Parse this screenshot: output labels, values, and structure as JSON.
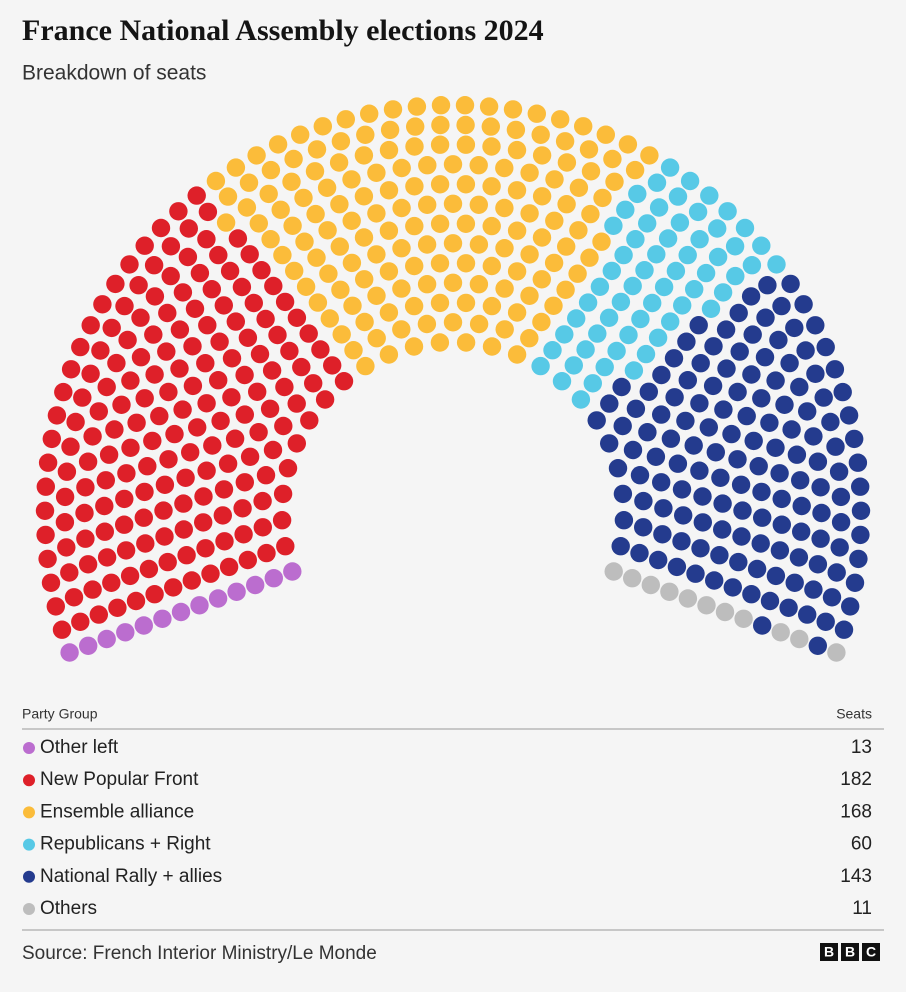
{
  "chart_data": {
    "type": "parliament",
    "title": "France National Assembly elections 2024",
    "subtitle": "Breakdown of seats",
    "categories": [
      "Other left",
      "New Popular Front",
      "Ensemble alliance",
      "Republicans + Right",
      "National Rally + allies",
      "Others"
    ],
    "values": [
      13,
      182,
      168,
      60,
      143,
      11
    ],
    "colors": [
      "#bb6dcf",
      "#de2029",
      "#fbbc3a",
      "#57c9e6",
      "#243b8e",
      "#bdbdbd"
    ],
    "column_headers": [
      "Party Group",
      "Seats"
    ],
    "source": "Source: French Interior Ministry/Le Monde",
    "logo": [
      "B",
      "B",
      "C"
    ]
  }
}
